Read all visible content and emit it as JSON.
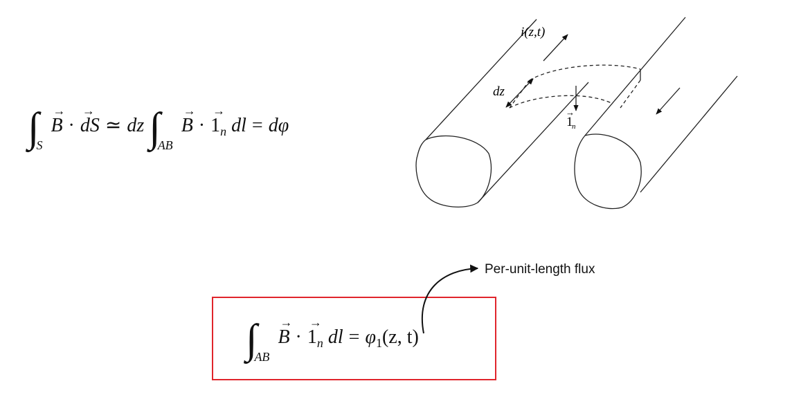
{
  "equation_top": {
    "integral_sub_1": "S",
    "B": "B",
    "dot": "·",
    "dS": "dS",
    "approx": "≃",
    "dz": "dz",
    "integral_sub_2": "AB",
    "one": "1",
    "n": "n",
    "dl": "dl",
    "equals": "=",
    "dphi": "dφ"
  },
  "equation_boxed": {
    "integral_sub": "AB",
    "B": "B",
    "dot": "·",
    "one": "1",
    "n": "n",
    "dl": "dl",
    "equals": "=",
    "phi1": "φ",
    "phi_sub": "1",
    "args": "(z, t)",
    "box_color": "#e0242b"
  },
  "annotation": {
    "text": "Per-unit-length flux"
  },
  "diagram": {
    "current_label": "i(z,t)",
    "dz_label": "dz",
    "normal_label": "1",
    "normal_sub": "n"
  }
}
